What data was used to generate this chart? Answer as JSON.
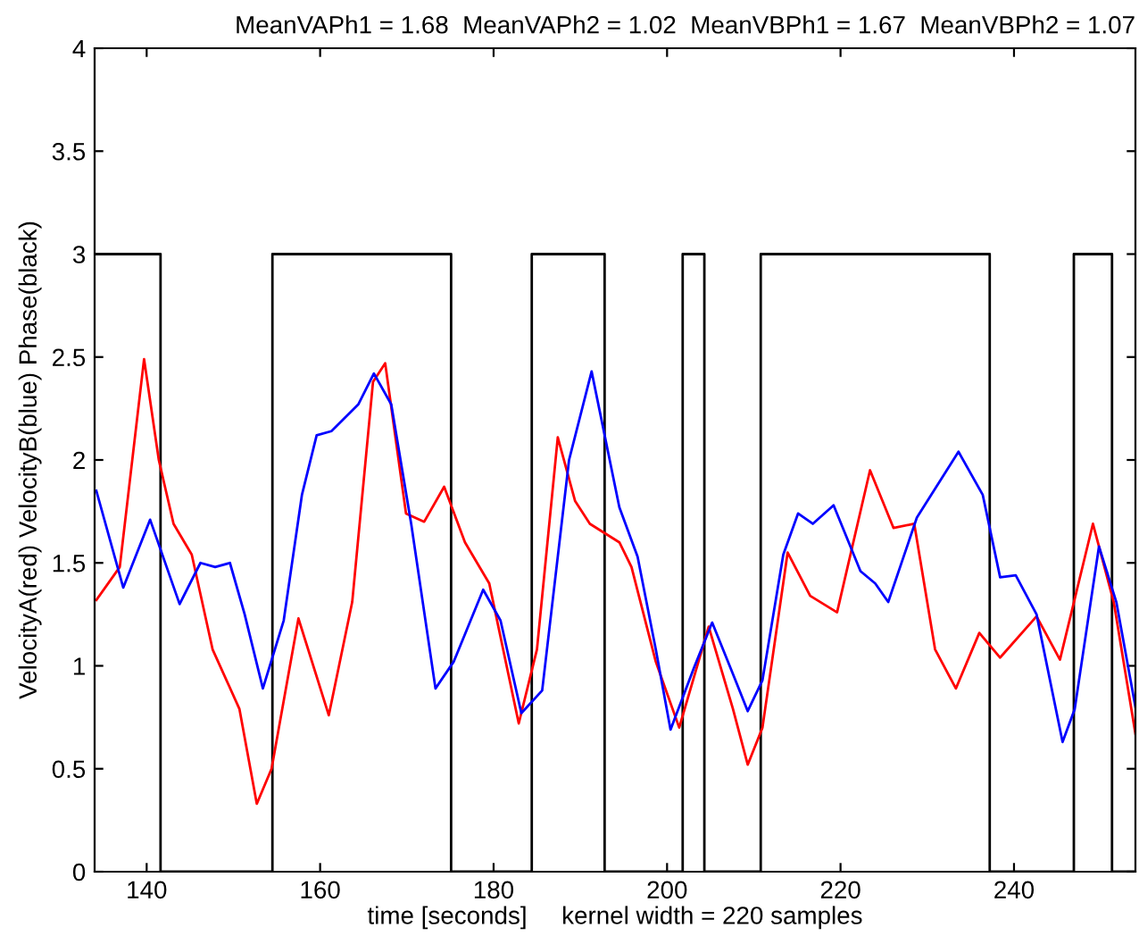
{
  "chart_data": {
    "type": "line",
    "title": "MeanVAPh1 = 1.68  MeanVAPh2 = 1.02  MeanVBPh1 = 1.67  MeanVBPh2 = 1.07",
    "xlabel": "time [seconds]     kernel width = 220 samples",
    "ylabel": "VelocityA(red) VelocityB(blue) Phase(black)",
    "xlim": [
      134,
      254
    ],
    "xticks": [
      140,
      160,
      180,
      200,
      220,
      240
    ],
    "ylim": [
      0,
      4
    ],
    "yticks": [
      0,
      0.5,
      1,
      1.5,
      2,
      2.5,
      3,
      3.5,
      4
    ],
    "grid": false,
    "legend": false,
    "series": [
      {
        "type": "step",
        "color": "#000000",
        "x": [
          134,
          141.6,
          154.5,
          175.1,
          184.4,
          192.8,
          201.8,
          204.3,
          210.8,
          237.2,
          246.9,
          251.3,
          254
        ],
        "values": [
          3,
          0,
          3,
          0,
          3,
          0,
          3,
          0,
          3,
          0,
          3,
          0,
          0
        ]
      },
      {
        "color": "#ff0000",
        "x": [
          134.2,
          136.9,
          139.7,
          141.4,
          143.1,
          145.2,
          147.6,
          150.7,
          152.7,
          154.4,
          157.5,
          161.0,
          163.7,
          166.1,
          167.5,
          169.9,
          172.0,
          174.3,
          176.7,
          179.5,
          182.9,
          185.0,
          187.4,
          189.4,
          191.1,
          194.5,
          195.9,
          198.7,
          201.4,
          204.8,
          207.6,
          209.3,
          211.0,
          213.9,
          216.5,
          219.6,
          223.4,
          226.1,
          228.5,
          230.9,
          233.3,
          236.0,
          238.4,
          242.6,
          245.3,
          249.1,
          251.5,
          254.0
        ],
        "values": [
          1.32,
          1.48,
          2.49,
          2.0,
          1.69,
          1.54,
          1.08,
          0.79,
          0.33,
          0.5,
          1.23,
          0.76,
          1.31,
          2.38,
          2.47,
          1.74,
          1.7,
          1.87,
          1.6,
          1.4,
          0.72,
          1.08,
          2.11,
          1.8,
          1.69,
          1.6,
          1.48,
          1.02,
          0.7,
          1.19,
          0.79,
          0.52,
          0.7,
          1.55,
          1.34,
          1.26,
          1.95,
          1.67,
          1.69,
          1.08,
          0.89,
          1.16,
          1.04,
          1.24,
          1.03,
          1.69,
          1.31,
          0.67
        ]
      },
      {
        "color": "#0000ff",
        "x": [
          134.2,
          137.3,
          140.4,
          143.8,
          146.2,
          147.9,
          149.6,
          151.3,
          153.4,
          155.8,
          157.9,
          159.6,
          161.3,
          164.4,
          166.2,
          168.2,
          170.5,
          173.3,
          175.4,
          178.8,
          180.8,
          183.2,
          185.6,
          188.7,
          191.3,
          194.5,
          196.6,
          198.7,
          200.4,
          203.1,
          205.2,
          207.6,
          209.3,
          211.0,
          213.4,
          215.1,
          216.8,
          219.2,
          222.3,
          224.0,
          225.5,
          228.8,
          233.6,
          236.4,
          238.4,
          240.2,
          242.6,
          245.6,
          247.0,
          249.8,
          251.8,
          254.0
        ],
        "values": [
          1.85,
          1.38,
          1.71,
          1.3,
          1.5,
          1.48,
          1.5,
          1.25,
          0.89,
          1.22,
          1.83,
          2.12,
          2.14,
          2.27,
          2.42,
          2.27,
          1.69,
          0.89,
          1.02,
          1.37,
          1.22,
          0.77,
          0.88,
          2.0,
          2.43,
          1.77,
          1.53,
          1.08,
          0.69,
          0.99,
          1.21,
          0.96,
          0.78,
          0.93,
          1.54,
          1.74,
          1.69,
          1.78,
          1.46,
          1.4,
          1.31,
          1.72,
          2.04,
          1.83,
          1.43,
          1.44,
          1.25,
          0.63,
          0.79,
          1.58,
          1.31,
          0.8
        ]
      }
    ]
  }
}
